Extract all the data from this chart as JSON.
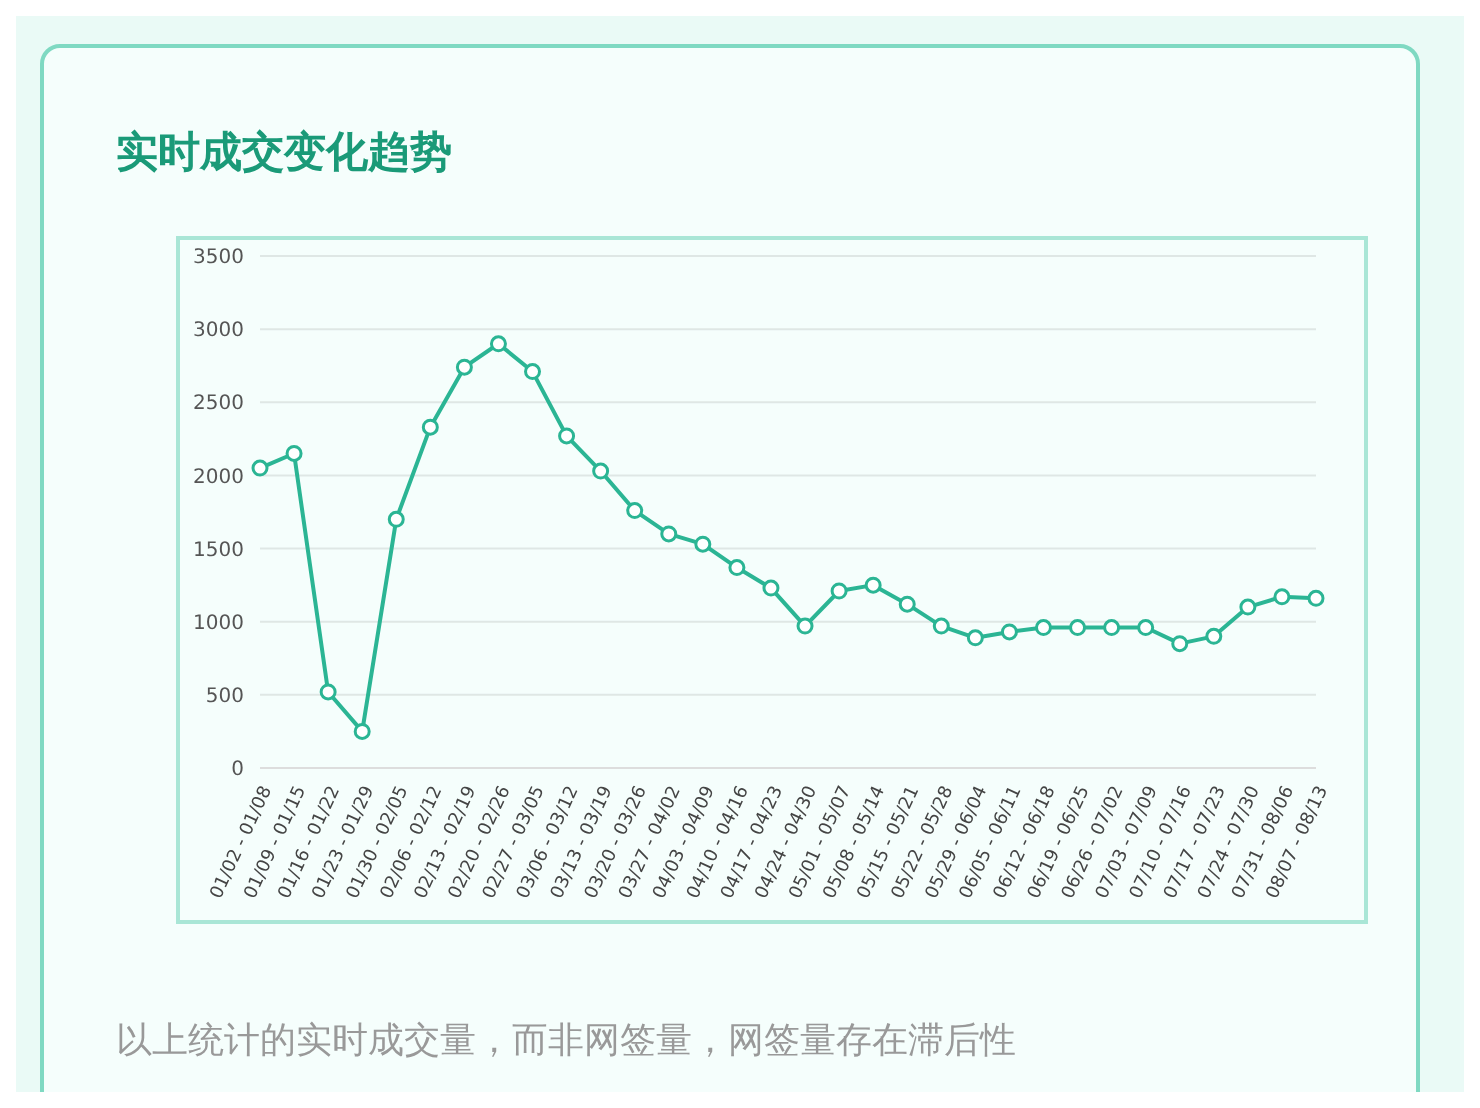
{
  "chart_data": {
    "type": "line",
    "title": "实时成交变化趋势",
    "categories": [
      "01/02 - 01/08",
      "01/09 - 01/15",
      "01/16 - 01/22",
      "01/23 - 01/29",
      "01/30 - 02/05",
      "02/06 - 02/12",
      "02/13 - 02/19",
      "02/20 - 02/26",
      "02/27 - 03/05",
      "03/06 - 03/12",
      "03/13 - 03/19",
      "03/20 - 03/26",
      "03/27 - 04/02",
      "04/03 - 04/09",
      "04/10 - 04/16",
      "04/17 - 04/23",
      "04/24 - 04/30",
      "05/01 - 05/07",
      "05/08 - 05/14",
      "05/15 - 05/21",
      "05/22 - 05/28",
      "05/29 - 06/04",
      "06/05 - 06/11",
      "06/12 - 06/18",
      "06/19 - 06/25",
      "06/26 - 07/02",
      "07/03 - 07/09",
      "07/10 - 07/16",
      "07/17 - 07/23",
      "07/24 - 07/30",
      "07/31 - 08/06",
      "08/07 - 08/13"
    ],
    "series": [
      {
        "color": "#2bb594",
        "values": [
          2050,
          2150,
          520,
          250,
          1700,
          2330,
          2740,
          2900,
          2710,
          2270,
          2030,
          1760,
          1600,
          1530,
          1370,
          1230,
          970,
          1210,
          1250,
          1120,
          970,
          890,
          930,
          960,
          960,
          960,
          960,
          850,
          900,
          1100,
          1170,
          1160
        ]
      }
    ],
    "ylim": [
      0,
      3500
    ],
    "yticks": [
      0,
      500,
      1000,
      1500,
      2000,
      2500,
      3000,
      3500
    ],
    "grid": "y",
    "marker": "circle",
    "line_style": "solid",
    "legend": false,
    "annotations": [
      "以上统计的实时成交量，而非网签量，网签量存在滞后性"
    ]
  }
}
